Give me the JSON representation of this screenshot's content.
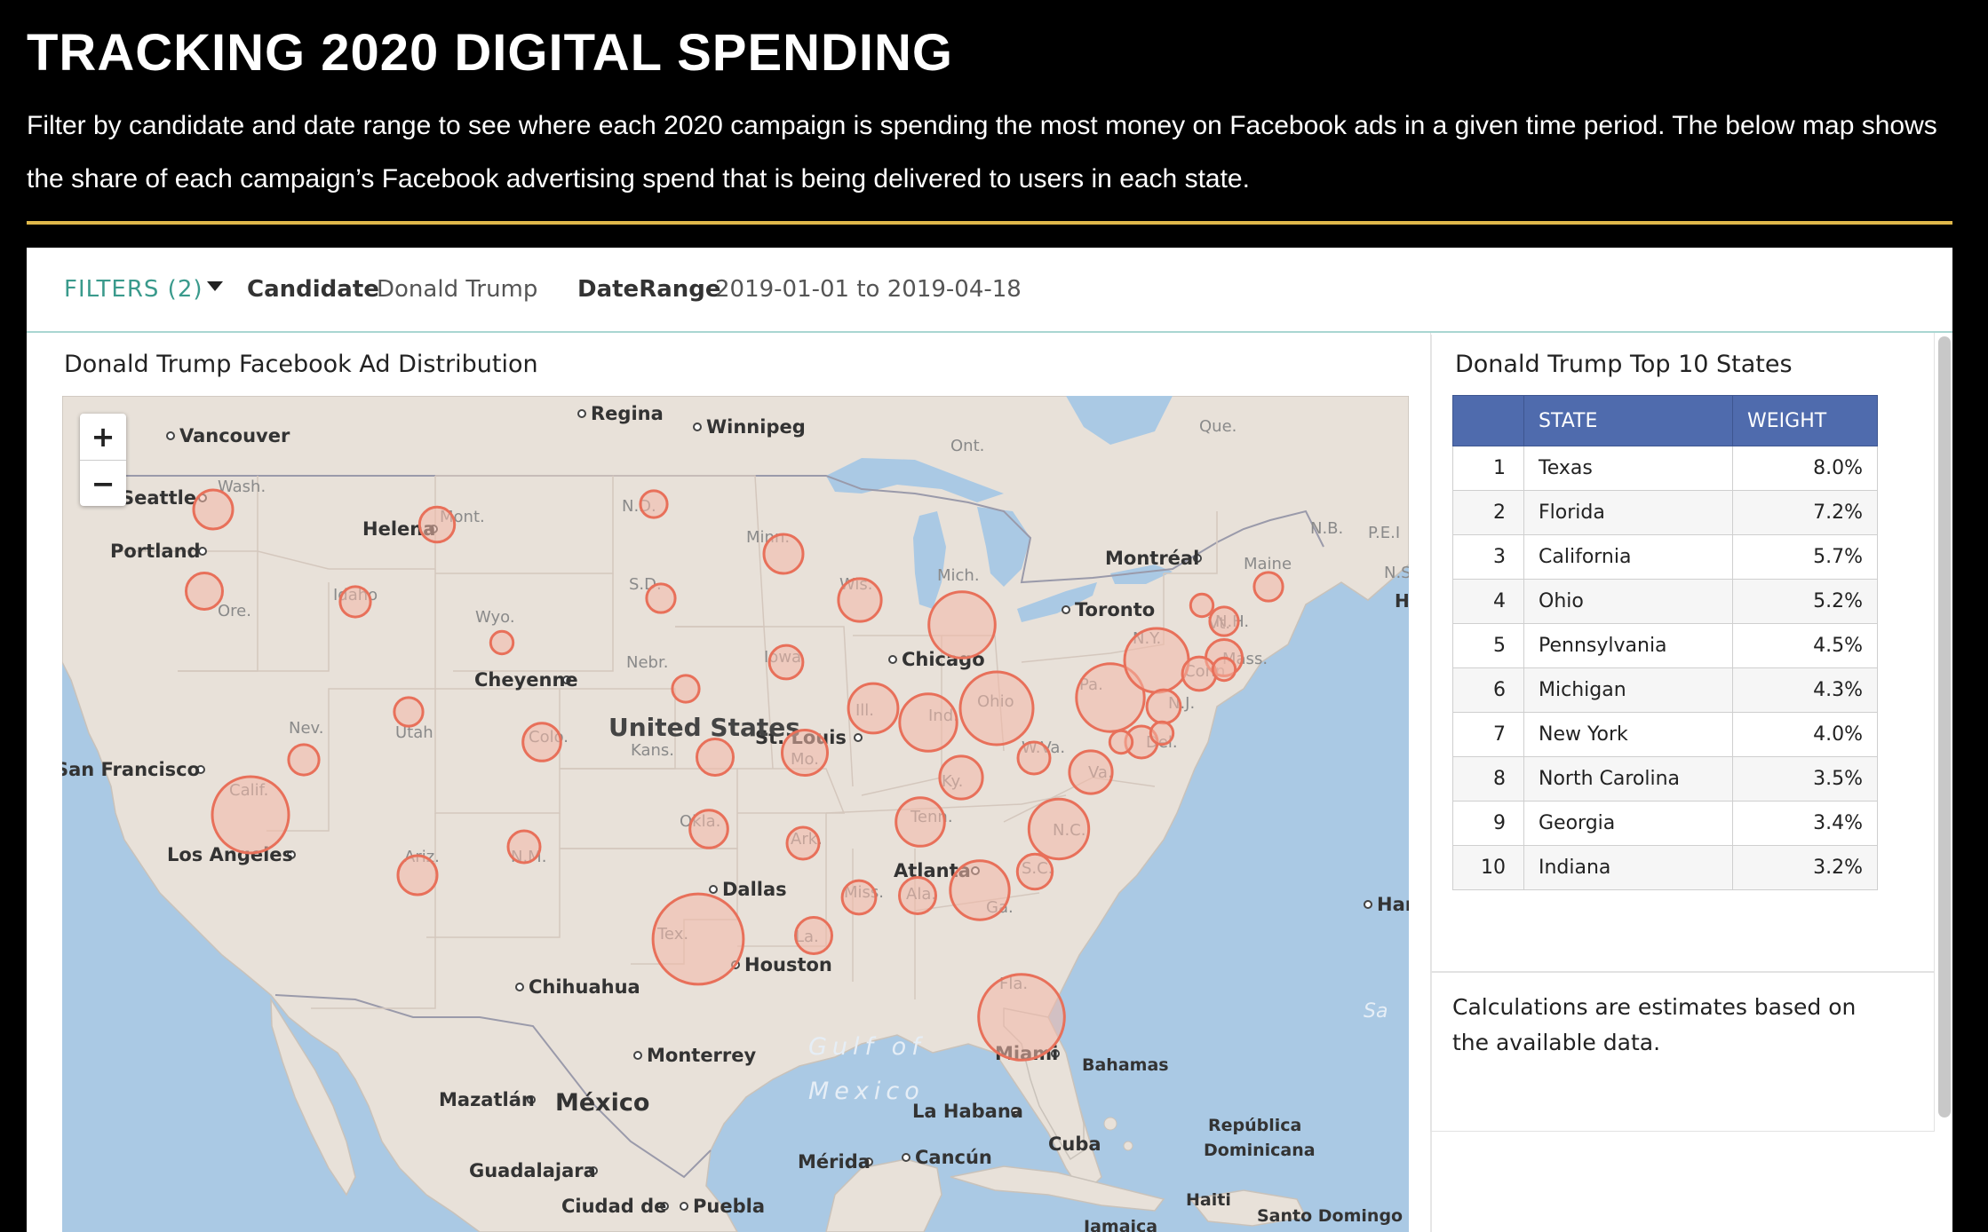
{
  "header": {
    "title": "TRACKING 2020 DIGITAL SPENDING",
    "description": "Filter by candidate and date range to see where each 2020 campaign is spending the most money on Facebook ads in a given time period. The below map shows the share of each campaign’s Facebook advertising spend that is being delivered to users in each state."
  },
  "filters": {
    "label": "FILTERS (2)",
    "candidate_label": "Candidate",
    "candidate_value": "Donald Trump",
    "date_label": "DateRange",
    "date_value": "2019-01-01 to 2019-04-18"
  },
  "map": {
    "title": "Donald Trump Facebook Ad Distribution",
    "zoom_in": "+",
    "zoom_out": "−",
    "country_label": "United States",
    "state_labels": [
      "Wash.",
      "Ore.",
      "Idaho",
      "Mont.",
      "Wyo.",
      "Nev.",
      "Utah",
      "Calif.",
      "Ariz.",
      "N.M.",
      "Colo.",
      "N.D.",
      "S.D.",
      "Nebr.",
      "Kans.",
      "Okla.",
      "Tex.",
      "Minn.",
      "Iowa",
      "Mo.",
      "Ark.",
      "La.",
      "Wis.",
      "Ill.",
      "Mich.",
      "Ind.",
      "Ohio",
      "Ky.",
      "Tenn.",
      "Miss.",
      "Ala.",
      "Ga.",
      "Fla.",
      "S.C.",
      "N.C.",
      "Va.",
      "W.Va.",
      "Pa.",
      "N.Y.",
      "Vt.",
      "N.H.",
      "Maine",
      "Mass.",
      "Conn.",
      "N.J.",
      "Del."
    ],
    "city_labels": [
      "Regina",
      "Winnipeg",
      "Vancouver",
      "Seattle",
      "Portland",
      "Helena",
      "Cheyenne",
      "San Francisco",
      "Los Angeles",
      "Dallas",
      "Houston",
      "Chihuahua",
      "Monterrey",
      "Mazatlán",
      "Guadalajara",
      "Ciudad de",
      "Puebla",
      "Mérida",
      "Cancún",
      "La Habana",
      "Miami",
      "Atlanta",
      "St. Louis",
      "Chicago",
      "Toronto",
      "Montréal",
      "Ham"
    ],
    "region_labels": [
      "Ont.",
      "Que.",
      "N.B.",
      "P.E.I",
      "N.S",
      "H",
      "México",
      "Bahamas",
      "Cuba",
      "República",
      "Dominicana",
      "Haiti",
      "Santo Domingo",
      "Jamaica",
      "Sa"
    ],
    "water_labels": [
      "Gulf of",
      "Mexico"
    ],
    "state_weights": [
      {
        "state": "Texas",
        "weight": 8.0
      },
      {
        "state": "Florida",
        "weight": 7.2
      },
      {
        "state": "California",
        "weight": 5.7
      },
      {
        "state": "Ohio",
        "weight": 5.2
      },
      {
        "state": "Pennsylvania",
        "weight": 4.5
      },
      {
        "state": "Michigan",
        "weight": 4.3
      },
      {
        "state": "New York",
        "weight": 4.0
      },
      {
        "state": "North Carolina",
        "weight": 3.5
      },
      {
        "state": "Georgia",
        "weight": 3.4
      },
      {
        "state": "Indiana",
        "weight": 3.2
      }
    ],
    "colors": {
      "water": "#aac9e4",
      "land": "#e8e1d9",
      "bubble_stroke": "#e8705a",
      "bubble_fill": "#f2b8a8"
    }
  },
  "top10": {
    "title": "Donald Trump Top 10 States",
    "columns": [
      "",
      "STATE",
      "WEIGHT"
    ],
    "rows": [
      {
        "rank": "1",
        "state": "Texas",
        "weight": "8.0%"
      },
      {
        "rank": "2",
        "state": "Florida",
        "weight": "7.2%"
      },
      {
        "rank": "3",
        "state": "California",
        "weight": "5.7%"
      },
      {
        "rank": "4",
        "state": "Ohio",
        "weight": "5.2%"
      },
      {
        "rank": "5",
        "state": "Pennsylvania",
        "weight": "4.5%"
      },
      {
        "rank": "6",
        "state": "Michigan",
        "weight": "4.3%"
      },
      {
        "rank": "7",
        "state": "New York",
        "weight": "4.0%"
      },
      {
        "rank": "8",
        "state": "North Carolina",
        "weight": "3.5%"
      },
      {
        "rank": "9",
        "state": "Georgia",
        "weight": "3.4%"
      },
      {
        "rank": "10",
        "state": "Indiana",
        "weight": "3.2%"
      }
    ],
    "header_color": "#4f6bad"
  },
  "note": "Calculations are estimates based on the available data."
}
